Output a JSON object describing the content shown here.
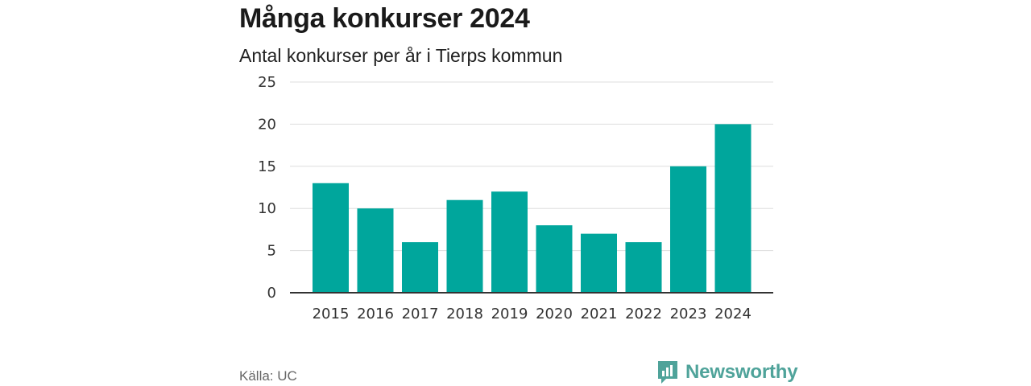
{
  "header": {
    "title": "Många konkurser 2024",
    "subtitle": "Antal konkurser per år i Tierps kommun"
  },
  "footer": {
    "source": "Källa: UC",
    "brand": "Newsworthy"
  },
  "colors": {
    "bar": "#00a69c",
    "grid": "#dddddd",
    "axis": "#333333",
    "brand": "#4fa39a"
  },
  "chart_data": {
    "type": "bar",
    "categories": [
      "2015",
      "2016",
      "2017",
      "2018",
      "2019",
      "2020",
      "2021",
      "2022",
      "2023",
      "2024"
    ],
    "values": [
      13,
      10,
      6,
      11,
      12,
      8,
      7,
      6,
      15,
      20
    ],
    "title": "Många konkurser 2024",
    "subtitle": "Antal konkurser per år i Tierps kommun",
    "xlabel": "",
    "ylabel": "",
    "ylim": [
      0,
      25
    ],
    "yticks": [
      0,
      5,
      10,
      15,
      20,
      25
    ],
    "grid": true,
    "legend": "none"
  }
}
